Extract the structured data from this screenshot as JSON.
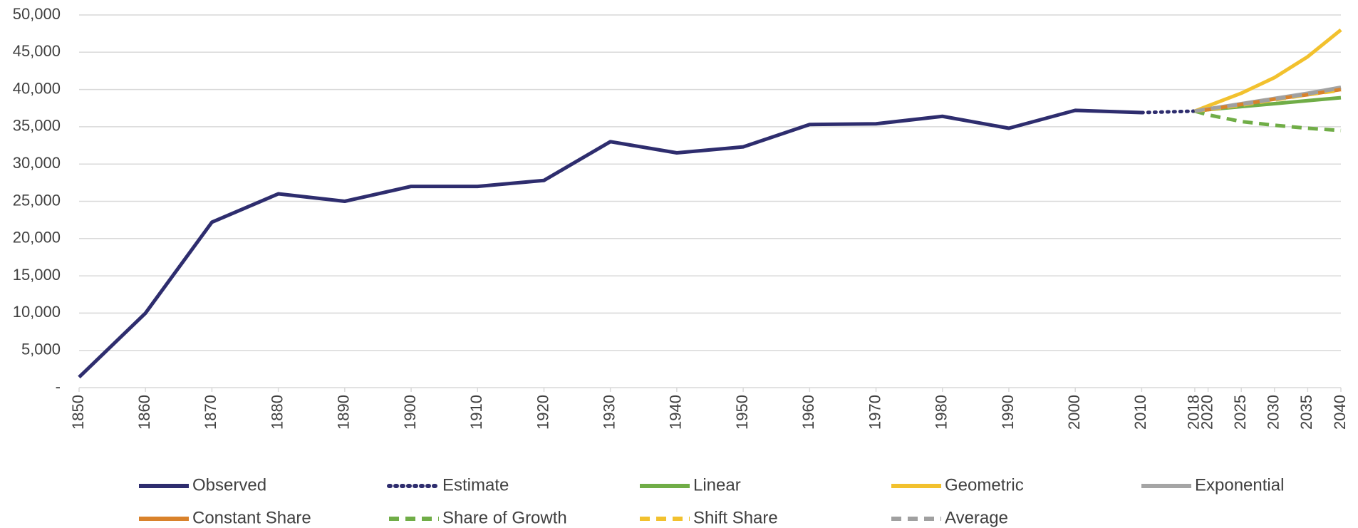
{
  "chart_data": {
    "type": "line",
    "x": [
      1850,
      1860,
      1870,
      1880,
      1890,
      1900,
      1910,
      1920,
      1930,
      1940,
      1950,
      1960,
      1970,
      1980,
      1990,
      2000,
      2010,
      2018,
      2020,
      2025,
      2030,
      2035,
      2040
    ],
    "xlim": [
      1850,
      2040
    ],
    "xticks": [
      1850,
      1860,
      1870,
      1880,
      1890,
      1900,
      1910,
      1920,
      1930,
      1940,
      1950,
      1960,
      1970,
      1980,
      1990,
      2000,
      2010,
      2018,
      2020,
      2025,
      2030,
      2035,
      2040
    ],
    "ylim": [
      0,
      50000
    ],
    "yticks": [
      {
        "value": 0,
        "label": "-"
      },
      {
        "value": 5000,
        "label": "5,000"
      },
      {
        "value": 10000,
        "label": "10,000"
      },
      {
        "value": 15000,
        "label": "15,000"
      },
      {
        "value": 20000,
        "label": "20,000"
      },
      {
        "value": 25000,
        "label": "25,000"
      },
      {
        "value": 30000,
        "label": "30,000"
      },
      {
        "value": 35000,
        "label": "35,000"
      },
      {
        "value": 40000,
        "label": "40,000"
      },
      {
        "value": 45000,
        "label": "45,000"
      },
      {
        "value": 50000,
        "label": "50,000"
      }
    ],
    "grid": true,
    "legend": "bottom",
    "series": [
      {
        "name": "Observed",
        "color": "#2e2d6e",
        "dash": "solid",
        "values": [
          1400,
          10000,
          22200,
          26000,
          25000,
          27000,
          27000,
          27800,
          33000,
          31500,
          32300,
          35300,
          35400,
          36400,
          34800,
          37200,
          36900,
          null,
          null,
          null,
          null,
          null,
          null
        ]
      },
      {
        "name": "Estimate",
        "color": "#2e2d6e",
        "dash": "dotted",
        "values": [
          null,
          null,
          null,
          null,
          null,
          null,
          null,
          null,
          null,
          null,
          null,
          null,
          null,
          null,
          null,
          null,
          36900,
          37100,
          null,
          null,
          null,
          null,
          null
        ]
      },
      {
        "name": "Linear",
        "color": "#70ad47",
        "dash": "solid",
        "values": [
          null,
          null,
          null,
          null,
          null,
          null,
          null,
          null,
          null,
          null,
          null,
          null,
          null,
          null,
          null,
          null,
          null,
          37100,
          37300,
          37700,
          38100,
          38500,
          38900
        ]
      },
      {
        "name": "Geometric",
        "color": "#f2c12e",
        "dash": "solid",
        "values": [
          null,
          null,
          null,
          null,
          null,
          null,
          null,
          null,
          null,
          null,
          null,
          null,
          null,
          null,
          null,
          null,
          null,
          37100,
          37800,
          39500,
          41600,
          44400,
          48000
        ]
      },
      {
        "name": "Exponential",
        "color": "#a5a5a5",
        "dash": "solid",
        "values": [
          null,
          null,
          null,
          null,
          null,
          null,
          null,
          null,
          null,
          null,
          null,
          null,
          null,
          null,
          null,
          null,
          null,
          37100,
          37400,
          38100,
          38800,
          39500,
          40300
        ]
      },
      {
        "name": "Constant Share",
        "color": "#d9822b",
        "dash": "solid",
        "values": [
          null,
          null,
          null,
          null,
          null,
          null,
          null,
          null,
          null,
          null,
          null,
          null,
          null,
          null,
          null,
          null,
          null,
          37100,
          37300,
          38000,
          38700,
          39300,
          40000
        ]
      },
      {
        "name": "Share of Growth",
        "color": "#70ad47",
        "dash": "dashed",
        "values": [
          null,
          null,
          null,
          null,
          null,
          null,
          null,
          null,
          null,
          null,
          null,
          null,
          null,
          null,
          null,
          null,
          null,
          37100,
          36600,
          35700,
          35200,
          34800,
          34500
        ]
      },
      {
        "name": "Shift Share",
        "color": "#f2c12e",
        "dash": "dashed",
        "values": [
          null,
          null,
          null,
          null,
          null,
          null,
          null,
          null,
          null,
          null,
          null,
          null,
          null,
          null,
          null,
          null,
          null,
          37100,
          37300,
          37900,
          38600,
          39300,
          39900
        ]
      },
      {
        "name": "Average",
        "color": "#a0a0a0",
        "dash": "dashed",
        "values": [
          null,
          null,
          null,
          null,
          null,
          null,
          null,
          null,
          null,
          null,
          null,
          null,
          null,
          null,
          null,
          null,
          null,
          37100,
          37400,
          38000,
          38700,
          39400,
          40200
        ]
      }
    ]
  }
}
